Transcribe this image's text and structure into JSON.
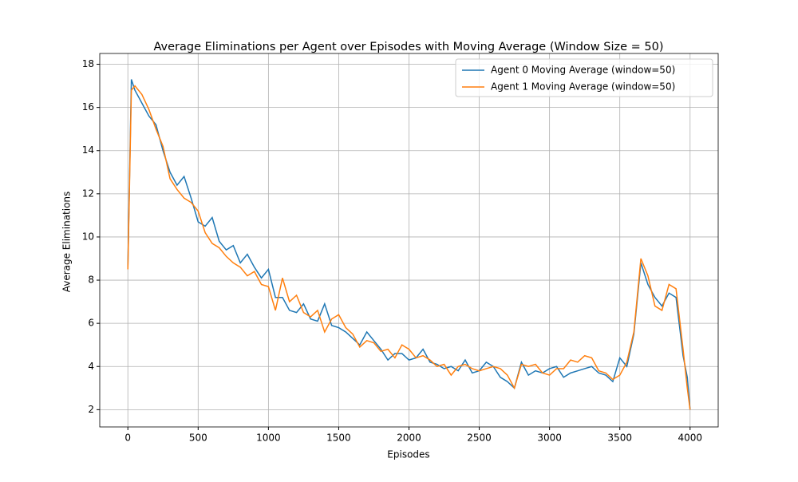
{
  "chart_data": {
    "type": "line",
    "title": "Average Eliminations per Agent over Episodes with Moving Average (Window Size = 50)",
    "x_label": "Episodes",
    "y_label": "Average Eliminations",
    "x": [
      0,
      25,
      50,
      100,
      150,
      200,
      250,
      300,
      350,
      400,
      450,
      500,
      550,
      600,
      650,
      700,
      750,
      800,
      850,
      900,
      950,
      1000,
      1050,
      1100,
      1150,
      1200,
      1250,
      1300,
      1350,
      1400,
      1450,
      1500,
      1550,
      1600,
      1650,
      1700,
      1750,
      1800,
      1850,
      1900,
      1950,
      2000,
      2050,
      2100,
      2150,
      2200,
      2250,
      2300,
      2350,
      2400,
      2450,
      2500,
      2550,
      2600,
      2650,
      2700,
      2750,
      2800,
      2850,
      2900,
      2950,
      3000,
      3050,
      3100,
      3150,
      3200,
      3250,
      3300,
      3350,
      3400,
      3450,
      3500,
      3550,
      3600,
      3650,
      3700,
      3750,
      3800,
      3850,
      3900,
      3950,
      3980,
      4000
    ],
    "series": [
      {
        "name": "Agent 0 Moving Average (window=50)",
        "color": "#1f77b4",
        "values": [
          8.6,
          17.3,
          16.8,
          16.2,
          15.6,
          15.2,
          14.0,
          13.0,
          12.4,
          12.8,
          11.8,
          10.7,
          10.5,
          10.9,
          9.8,
          9.4,
          9.6,
          8.8,
          9.2,
          8.6,
          8.1,
          8.5,
          7.2,
          7.2,
          6.6,
          6.5,
          6.9,
          6.2,
          6.1,
          6.9,
          5.9,
          5.8,
          5.6,
          5.3,
          5.0,
          5.6,
          5.2,
          4.8,
          4.3,
          4.6,
          4.6,
          4.3,
          4.4,
          4.8,
          4.2,
          4.1,
          3.9,
          4.0,
          3.8,
          4.3,
          3.7,
          3.8,
          4.2,
          4.0,
          3.5,
          3.3,
          3.0,
          4.2,
          3.6,
          3.8,
          3.7,
          3.9,
          4.0,
          3.5,
          3.7,
          3.8,
          3.9,
          4.0,
          3.7,
          3.6,
          3.3,
          4.4,
          4.0,
          5.5,
          8.8,
          7.8,
          7.2,
          6.8,
          7.4,
          7.2,
          4.5,
          3.5,
          2.0
        ]
      },
      {
        "name": "Agent 1 Moving Average (window=50)",
        "color": "#ff7f0e",
        "values": [
          8.5,
          16.8,
          17.0,
          16.6,
          15.9,
          15.0,
          14.2,
          12.7,
          12.2,
          11.8,
          11.6,
          11.2,
          10.2,
          9.7,
          9.5,
          9.1,
          8.8,
          8.6,
          8.2,
          8.4,
          7.8,
          7.7,
          6.6,
          8.1,
          7.0,
          7.3,
          6.5,
          6.3,
          6.6,
          5.6,
          6.2,
          6.4,
          5.8,
          5.5,
          4.9,
          5.2,
          5.1,
          4.7,
          4.8,
          4.4,
          5.0,
          4.8,
          4.4,
          4.5,
          4.3,
          4.0,
          4.1,
          3.6,
          4.0,
          4.1,
          3.9,
          3.8,
          3.9,
          4.0,
          3.9,
          3.6,
          3.0,
          4.1,
          4.0,
          4.1,
          3.7,
          3.6,
          3.9,
          3.9,
          4.3,
          4.2,
          4.5,
          4.4,
          3.8,
          3.7,
          3.4,
          3.6,
          4.2,
          5.6,
          9.0,
          8.2,
          6.8,
          6.6,
          7.8,
          7.6,
          4.8,
          3.0,
          2.0
        ]
      }
    ],
    "xlim": [
      -200,
      4200
    ],
    "ylim": [
      1.2,
      18.5
    ],
    "xticks": [
      0,
      500,
      1000,
      1500,
      2000,
      2500,
      3000,
      3500,
      4000
    ],
    "yticks": [
      2,
      4,
      6,
      8,
      10,
      12,
      14,
      16,
      18
    ],
    "grid": true,
    "legend": "upper right"
  }
}
